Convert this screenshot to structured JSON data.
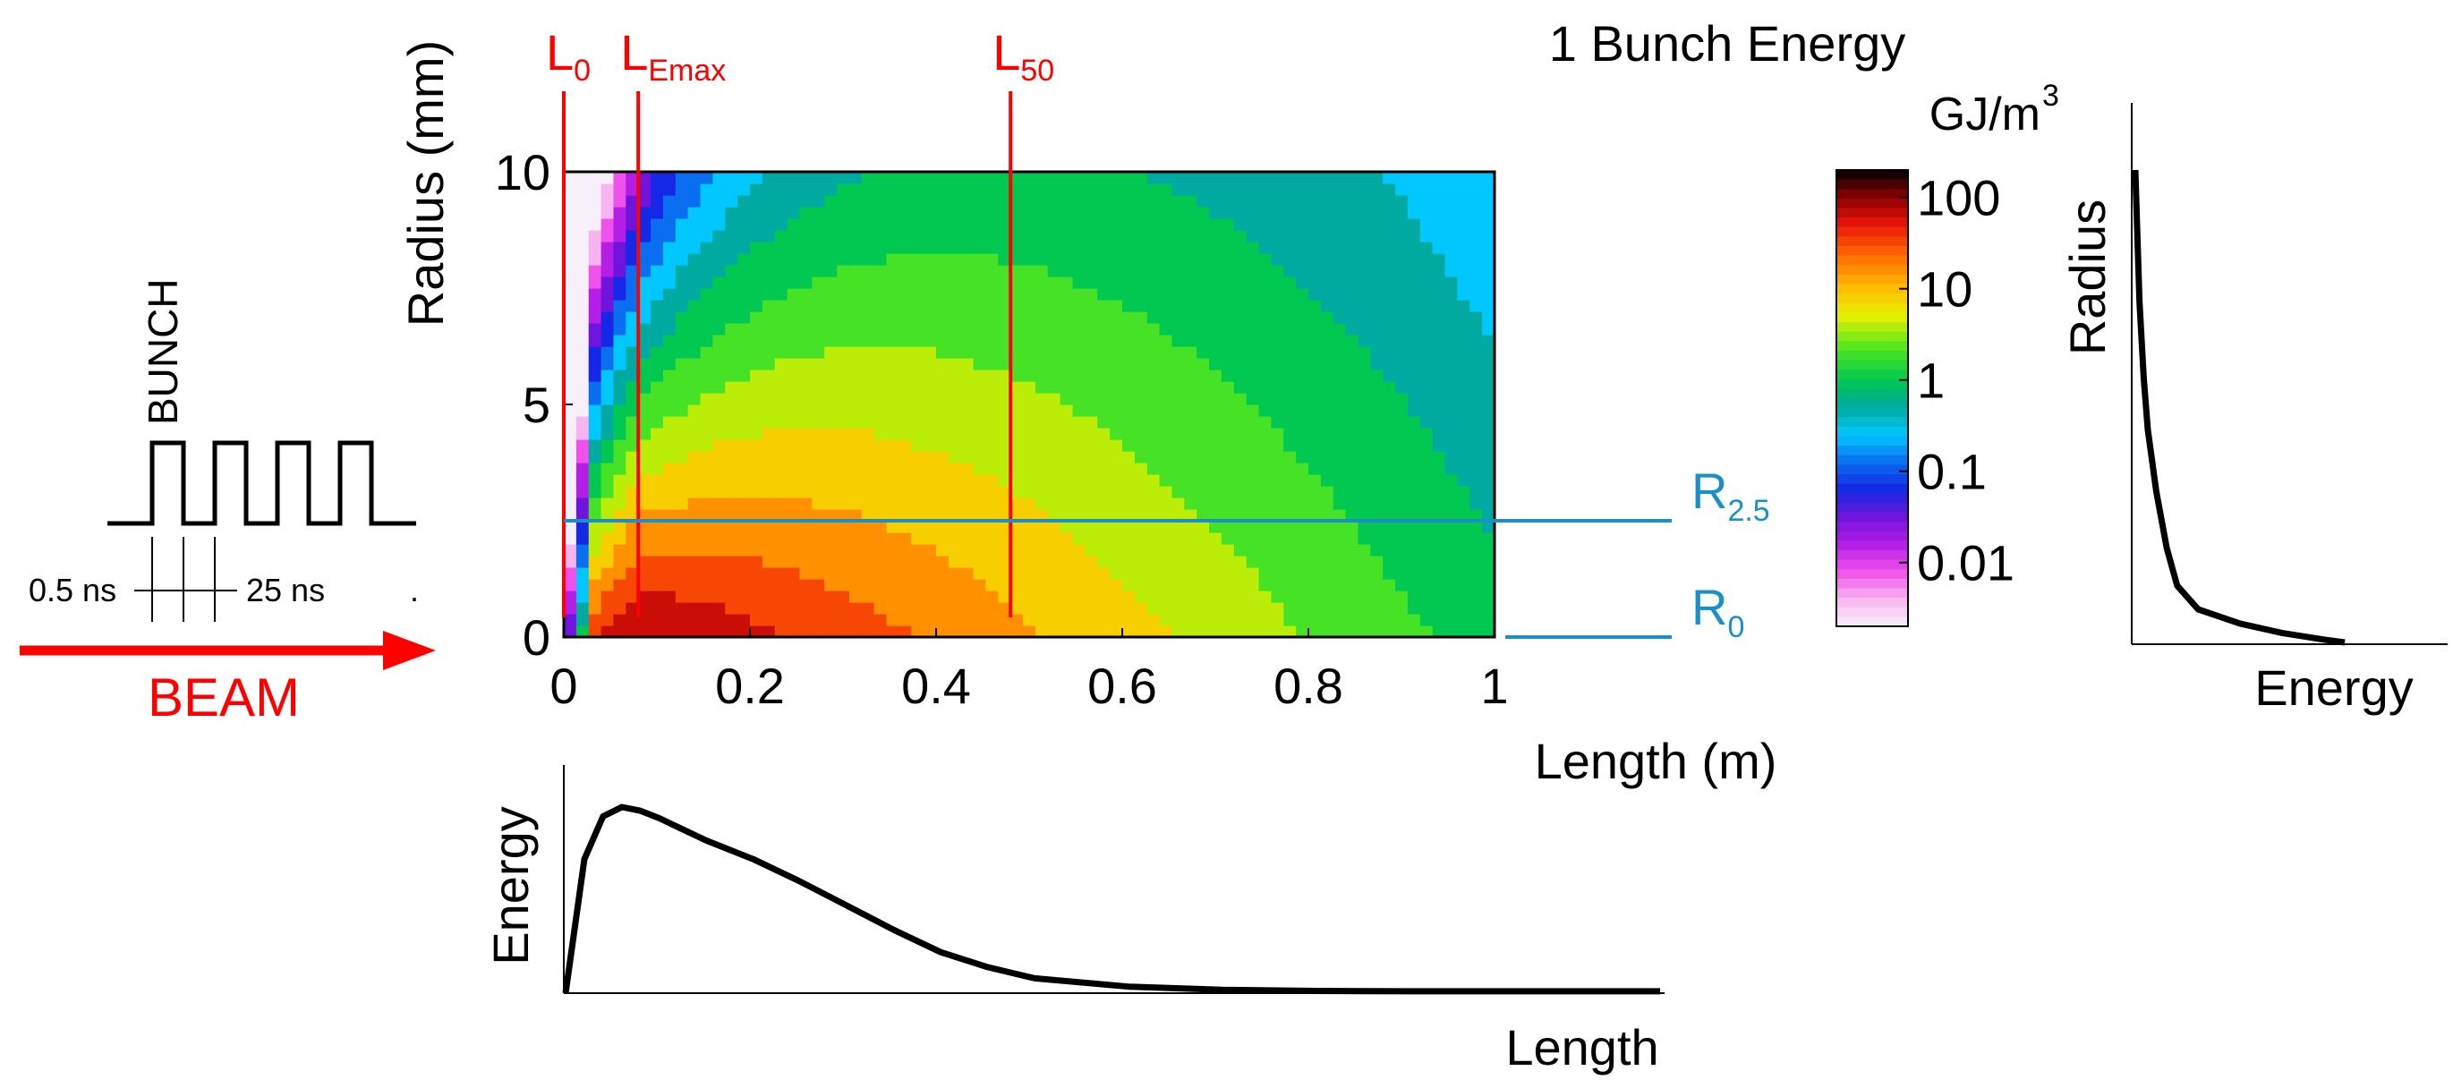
{
  "chart_data": [
    {
      "type": "heatmap",
      "title": "1 Bunch Energy",
      "colorbar_unit": "GJ/m",
      "colorbar_unit_exp": "3",
      "xlabel": "Length (m)",
      "ylabel": "Radius (mm)",
      "xlim": [
        0,
        1
      ],
      "ylim": [
        0,
        10
      ],
      "x_ticks": [
        "0",
        "0.2",
        "0.4",
        "0.6",
        "0.8",
        "1"
      ],
      "y_ticks": [
        "0",
        "5",
        "10"
      ],
      "colorbar_ticks": [
        "100",
        "10",
        "1",
        "0.1",
        "0.01"
      ],
      "colorbar_scale": "log",
      "colorbar_range": [
        0.002,
        200
      ],
      "vertical_markers": [
        {
          "label": "L",
          "sub": "0",
          "x": 0.0
        },
        {
          "label": "L",
          "sub": "Emax",
          "x": 0.08
        },
        {
          "label": "L",
          "sub": "50",
          "x": 0.48
        }
      ],
      "horizontal_markers": [
        {
          "label": "R",
          "sub": "2.5",
          "y": 2.5
        },
        {
          "label": "R",
          "sub": "0",
          "y": 0.0
        }
      ],
      "model": {
        "description": "log10 energy density vs length and radius",
        "peak_length_m": 0.08,
        "peak_value_gj_m3": 100
      }
    },
    {
      "type": "line",
      "xlabel": "Length",
      "ylabel": "Energy",
      "x": [
        0,
        0.02,
        0.04,
        0.06,
        0.08,
        0.1,
        0.15,
        0.2,
        0.25,
        0.3,
        0.35,
        0.4,
        0.45,
        0.5,
        0.6,
        0.7,
        0.8,
        0.9,
        1.0
      ],
      "y": [
        0,
        0.72,
        0.95,
        1.0,
        0.98,
        0.94,
        0.82,
        0.72,
        0.6,
        0.47,
        0.34,
        0.22,
        0.14,
        0.08,
        0.035,
        0.018,
        0.012,
        0.01,
        0.01
      ]
    },
    {
      "type": "line",
      "xlabel": "Energy",
      "ylabel": "Radius",
      "x": [
        0.0,
        0.02,
        0.04,
        0.06,
        0.1,
        0.15,
        0.2,
        0.3,
        0.5,
        0.7,
        0.9,
        1.0
      ],
      "y": [
        1.0,
        0.72,
        0.56,
        0.45,
        0.32,
        0.2,
        0.12,
        0.07,
        0.04,
        0.02,
        0.006,
        0.0
      ]
    },
    {
      "type": "line",
      "ylabel": "BUNCH",
      "xlabel": "BEAM",
      "series": [
        {
          "name": "bunch train",
          "pulses": 4
        }
      ],
      "annotations": [
        "0.5 ns",
        "25 ns",
        "."
      ]
    }
  ]
}
